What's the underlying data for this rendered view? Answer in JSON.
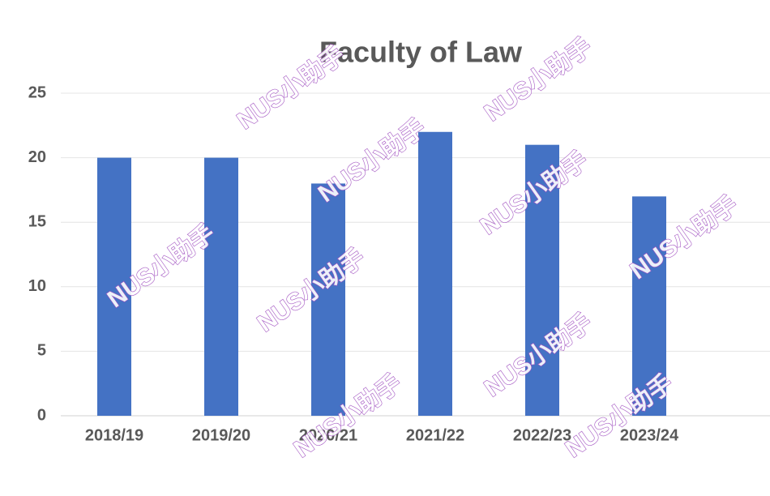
{
  "chart_data": {
    "type": "bar",
    "title": "Faculty of Law",
    "categories": [
      "2018/19",
      "2019/20",
      "2020/21",
      "2021/22",
      "2022/23",
      "2023/24"
    ],
    "values": [
      20,
      20,
      18,
      22,
      21,
      17
    ],
    "color": "#4472c4",
    "ylim": [
      0,
      25
    ],
    "yticks": [
      0,
      5,
      10,
      15,
      20,
      25
    ],
    "grid": true
  },
  "watermark": "NUS小助手"
}
